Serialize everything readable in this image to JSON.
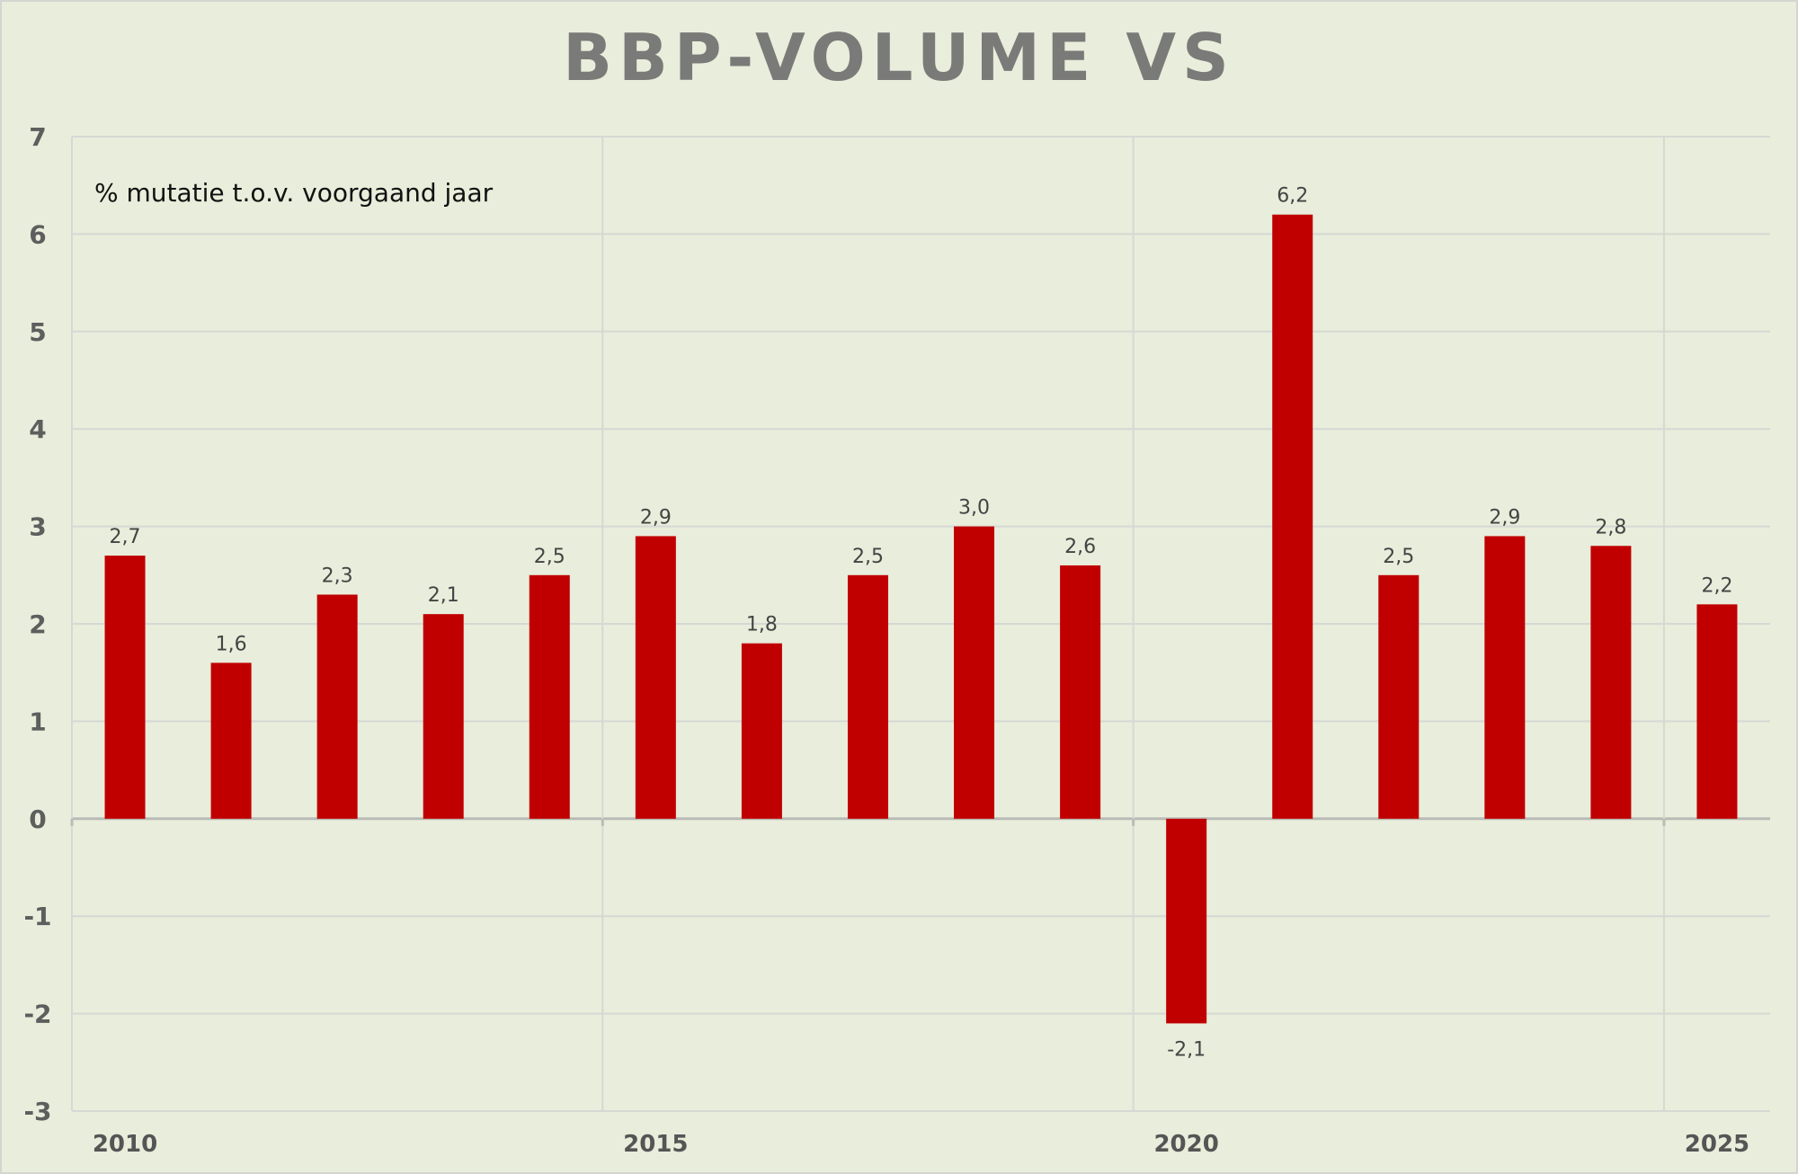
{
  "chart_data": {
    "type": "bar",
    "title": "BBP-VOLUME VS",
    "subtitle": "% mutatie t.o.v. voorgaand jaar",
    "xlabel": "",
    "ylabel": "",
    "categories": [
      "2010",
      "2011",
      "2012",
      "2013",
      "2014",
      "2015",
      "2016",
      "2017",
      "2018",
      "2019",
      "2020",
      "2021",
      "2022",
      "2023",
      "2024",
      "2025"
    ],
    "values": [
      2.7,
      1.6,
      2.3,
      2.1,
      2.5,
      2.9,
      1.8,
      2.5,
      3.0,
      2.6,
      -2.1,
      6.2,
      2.5,
      2.9,
      2.8,
      2.2
    ],
    "data_labels": [
      "2,7",
      "1,6",
      "2,3",
      "2,1",
      "2,5",
      "2,9",
      "1,8",
      "2,5",
      "3,0",
      "2,6",
      "-2,1",
      "6,2",
      "2,5",
      "2,9",
      "2,8",
      "2,2"
    ],
    "x_tick_labels": [
      "2010",
      "2015",
      "2020",
      "2025"
    ],
    "y_ticks": [
      7,
      6,
      5,
      4,
      3,
      2,
      1,
      0,
      -1,
      -2,
      -3
    ],
    "ylim": [
      -3,
      7
    ],
    "grid": true,
    "legend": "none",
    "bar_color": "#c00000"
  }
}
